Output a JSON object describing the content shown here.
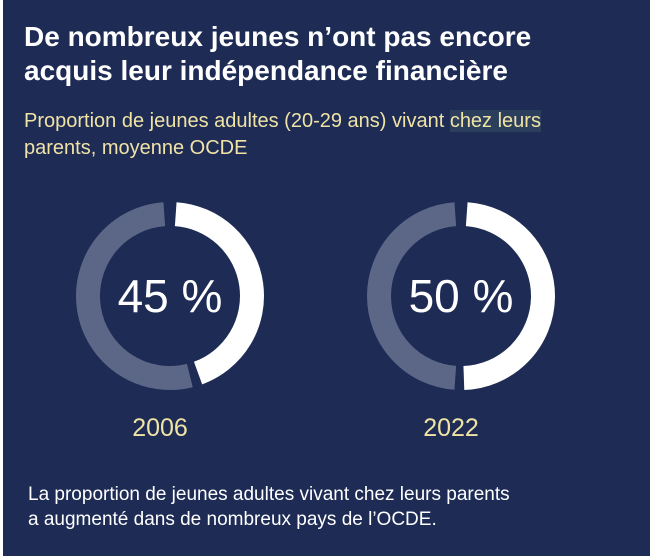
{
  "title_line1": "De nombreux jeunes n’ont pas encore",
  "title_line2": "acquis leur indépendance financière",
  "subtitle_before": "Proportion de jeunes adultes (20-29 ans) vivant ",
  "subtitle_highlight": "chez leurs",
  "subtitle_after": "parents, moyenne OCDE",
  "footer_line1": "La proportion de jeunes adultes vivant chez leurs parents",
  "footer_line2": "a augmenté dans de nombreux pays de l’OCDE.",
  "colors": {
    "background": "#1d2b55",
    "filled": "#ffffff",
    "remainder": "#5c6788",
    "year_label": "#f0e3a6"
  },
  "chart_data": [
    {
      "type": "pie",
      "category": "2006",
      "value": 45,
      "unit": "%",
      "label": "45 %"
    },
    {
      "type": "pie",
      "category": "2022",
      "value": 50,
      "unit": "%",
      "label": "50 %"
    }
  ]
}
